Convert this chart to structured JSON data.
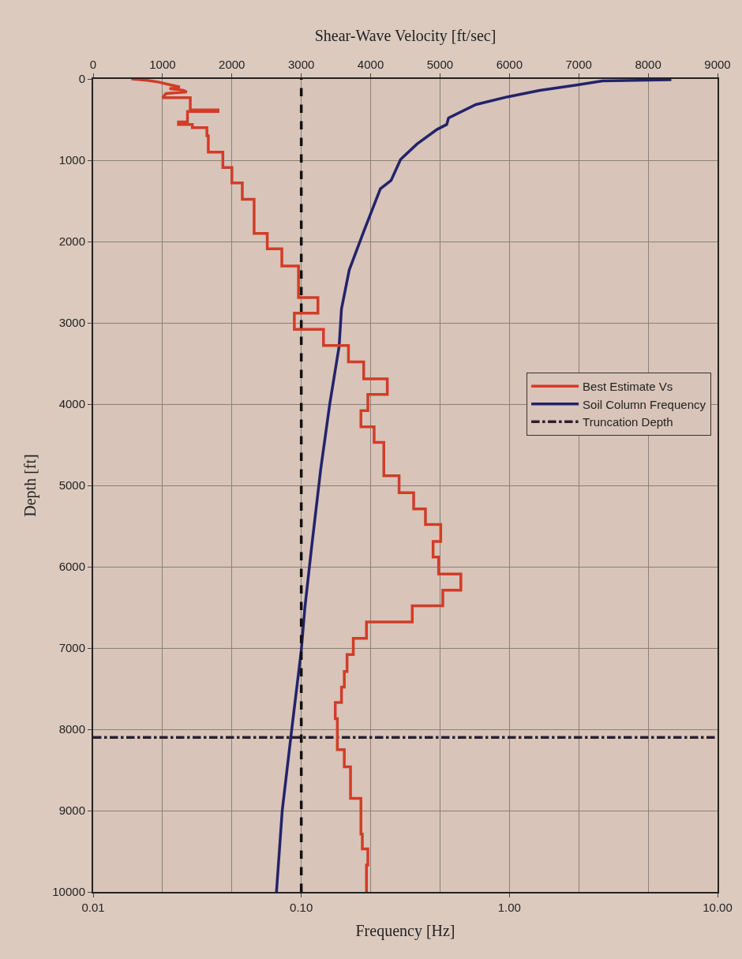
{
  "chart_data": {
    "type": "line",
    "xlabel": "Frequency [Hz]",
    "x2label": "Shear-Wave Velocity [ft/sec]",
    "ylabel": "Depth [ft]",
    "log": "x",
    "xlim": [
      0.01,
      10
    ],
    "xticks": [
      {
        "value": 0.01,
        "label": "0.01"
      },
      {
        "value": 0.1,
        "label": "0.10"
      },
      {
        "value": 1,
        "label": "1.00"
      },
      {
        "value": 10,
        "label": "10.00"
      }
    ],
    "x2lim": [
      0,
      9000
    ],
    "x2ticks": [
      0,
      1000,
      2000,
      3000,
      4000,
      5000,
      6000,
      7000,
      8000,
      9000
    ],
    "ylim": [
      10000,
      0
    ],
    "yticks": [
      0,
      1000,
      2000,
      3000,
      4000,
      5000,
      6000,
      7000,
      8000,
      9000,
      10000
    ],
    "grid": true,
    "legend": "right",
    "marker": "none",
    "series": [
      {
        "name": "Best Estimate Vs",
        "color": "#d23c28",
        "axis": "x2",
        "x": [
          550,
          800,
          950,
          1050,
          1150,
          1250,
          1100,
          1300,
          1350,
          1050,
          1000,
          1400,
          1400,
          1800,
          1800,
          1360,
          1360,
          1230,
          1230,
          1430,
          1430,
          1640,
          1640,
          1660,
          1660,
          1870,
          1870,
          2000,
          2000,
          2150,
          2150,
          2320,
          2320,
          2510,
          2510,
          2720,
          2720,
          2960,
          2960,
          3240,
          3240,
          2900,
          2900,
          3320,
          3320,
          3680,
          3680,
          3900,
          3900,
          4240,
          4240,
          3960,
          3960,
          3860,
          3860,
          4050,
          4050,
          4190,
          4190,
          4410,
          4410,
          4620,
          4620,
          4790,
          4790,
          5010,
          5010,
          4900,
          4900,
          4980,
          4980,
          5300,
          5300,
          5040,
          5040,
          4600,
          4600,
          3940,
          3940,
          3750,
          3750,
          3660,
          3660,
          3620,
          3620,
          3580,
          3580,
          3490,
          3490,
          3520,
          3520,
          3620,
          3620,
          3710,
          3710,
          3860,
          3860,
          3880,
          3880,
          3960,
          3960,
          3940,
          3940
        ],
        "values": [
          0,
          20,
          40,
          60,
          80,
          100,
          120,
          140,
          160,
          180,
          230,
          230,
          380,
          380,
          400,
          400,
          530,
          530,
          560,
          560,
          600,
          600,
          700,
          700,
          900,
          900,
          1090,
          1090,
          1280,
          1280,
          1480,
          1480,
          1900,
          1900,
          2090,
          2090,
          2300,
          2300,
          2690,
          2690,
          2880,
          2880,
          3080,
          3080,
          3280,
          3280,
          3480,
          3480,
          3690,
          3690,
          3880,
          3880,
          4080,
          4080,
          4280,
          4280,
          4470,
          4470,
          4880,
          4880,
          5090,
          5090,
          5290,
          5290,
          5480,
          5480,
          5690,
          5690,
          5880,
          5880,
          6090,
          6090,
          6290,
          6290,
          6480,
          6480,
          6680,
          6680,
          6880,
          6880,
          7080,
          7080,
          7290,
          7290,
          7480,
          7480,
          7670,
          7670,
          7870,
          7870,
          8250,
          8250,
          8460,
          8460,
          8850,
          8850,
          9290,
          9290,
          9470,
          9470,
          9670,
          9670,
          10000
        ]
      },
      {
        "name": "Soil Column Frequency",
        "color": "#23236b",
        "x": [
          6.0,
          2.8,
          2.1,
          1.4,
          0.98,
          0.69,
          0.51,
          0.5,
          0.45,
          0.36,
          0.3,
          0.27,
          0.24,
          0.2,
          0.17,
          0.156,
          0.152,
          0.137,
          0.124,
          0.112,
          0.104,
          0.1,
          0.09,
          0.081,
          0.076
        ],
        "values": [
          10,
          25,
          75,
          140,
          220,
          315,
          480,
          560,
          620,
          800,
          990,
          1250,
          1350,
          1870,
          2350,
          2830,
          3290,
          4000,
          4800,
          5770,
          6510,
          7030,
          8000,
          9000,
          10000
        ]
      }
    ],
    "ref_lines": [
      {
        "axis": "y",
        "value": 8100,
        "label": "Truncation Depth",
        "color": "#2a2030",
        "line_style": "dashdot"
      },
      {
        "axis": "x",
        "value": 0.1,
        "color": "#111111",
        "line_style": "dashed"
      }
    ]
  }
}
